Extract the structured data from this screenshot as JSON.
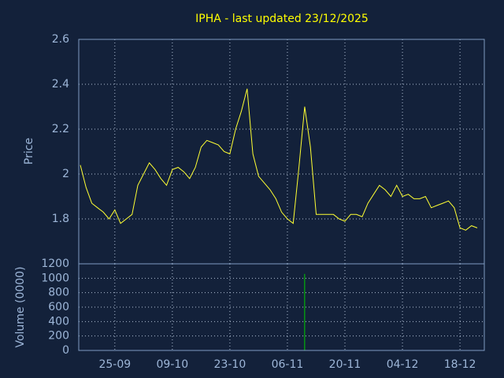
{
  "chart_data": [
    {
      "type": "line",
      "title": "IPHA - last updated 23/12/2025",
      "ylabel": "Price",
      "color": "#ffff33",
      "grid": true,
      "categories": [
        "17-09",
        "18-09",
        "19-09",
        "22-09",
        "23-09",
        "24-09",
        "25-09",
        "26-09",
        "29-09",
        "30-09",
        "01-10",
        "02-10",
        "03-10",
        "06-10",
        "07-10",
        "08-10",
        "09-10",
        "10-10",
        "13-10",
        "14-10",
        "15-10",
        "16-10",
        "17-10",
        "20-10",
        "21-10",
        "22-10",
        "23-10",
        "24-10",
        "27-10",
        "28-10",
        "29-10",
        "30-10",
        "31-10",
        "03-11",
        "04-11",
        "05-11",
        "06-11",
        "07-11",
        "10-11",
        "11-11",
        "12-11",
        "13-11",
        "14-11",
        "17-11",
        "18-11",
        "19-11",
        "20-11",
        "21-11",
        "24-11",
        "25-11",
        "26-11",
        "27-11",
        "28-11",
        "01-12",
        "02-12",
        "03-12",
        "04-12",
        "05-12",
        "08-12",
        "09-12",
        "10-12",
        "11-12",
        "12-12",
        "15-12",
        "16-12",
        "17-12",
        "18-12",
        "19-12",
        "22-12",
        "23-12"
      ],
      "values": [
        2.04,
        1.94,
        1.87,
        1.85,
        1.83,
        1.8,
        1.84,
        1.78,
        1.8,
        1.82,
        1.95,
        2.0,
        2.05,
        2.02,
        1.98,
        1.95,
        2.02,
        2.03,
        2.01,
        1.98,
        2.03,
        2.12,
        2.15,
        2.14,
        2.13,
        2.1,
        2.09,
        2.2,
        2.28,
        2.38,
        2.09,
        1.99,
        1.96,
        1.93,
        1.89,
        1.83,
        1.8,
        1.78,
        2.03,
        2.3,
        2.12,
        1.82,
        1.82,
        1.82,
        1.82,
        1.8,
        1.79,
        1.82,
        1.82,
        1.81,
        1.87,
        1.91,
        1.95,
        1.93,
        1.9,
        1.95,
        1.9,
        1.91,
        1.89,
        1.89,
        1.9,
        1.85,
        1.86,
        1.87,
        1.88,
        1.85,
        1.76,
        1.75,
        1.77,
        1.76
      ],
      "ylim": [
        1.6,
        2.6
      ],
      "yticks": [
        1.8,
        2,
        2.2,
        2.4,
        2.6
      ],
      "xticks": [
        "25-09",
        "09-10",
        "23-10",
        "06-11",
        "20-11",
        "04-12",
        "18-12"
      ]
    },
    {
      "type": "bar",
      "ylabel": "Volume (0000)",
      "color": "#00cc00",
      "grid": true,
      "categories": [
        "17-09",
        "18-09",
        "19-09",
        "22-09",
        "23-09",
        "24-09",
        "25-09",
        "26-09",
        "29-09",
        "30-09",
        "01-10",
        "02-10",
        "03-10",
        "06-10",
        "07-10",
        "08-10",
        "09-10",
        "10-10",
        "13-10",
        "14-10",
        "15-10",
        "16-10",
        "17-10",
        "20-10",
        "21-10",
        "22-10",
        "23-10",
        "24-10",
        "27-10",
        "28-10",
        "29-10",
        "30-10",
        "31-10",
        "03-11",
        "04-11",
        "05-11",
        "06-11",
        "07-11",
        "10-11",
        "11-11",
        "12-11",
        "13-11",
        "14-11",
        "17-11",
        "18-11",
        "19-11",
        "20-11",
        "21-11",
        "24-11",
        "25-11",
        "26-11",
        "27-11",
        "28-11",
        "01-12",
        "02-12",
        "03-12",
        "04-12",
        "05-12",
        "08-12",
        "09-12",
        "10-12",
        "11-12",
        "12-12",
        "15-12",
        "16-12",
        "17-12",
        "18-12",
        "19-12",
        "22-12",
        "23-12"
      ],
      "values": [
        0,
        0,
        0,
        0,
        0,
        0,
        0,
        0,
        0,
        0,
        0,
        0,
        0,
        0,
        0,
        0,
        0,
        0,
        0,
        0,
        0,
        0,
        0,
        0,
        0,
        0,
        0,
        0,
        0,
        0,
        0,
        0,
        0,
        0,
        0,
        0,
        0,
        0,
        0,
        1060,
        0,
        0,
        0,
        0,
        0,
        0,
        0,
        0,
        0,
        0,
        0,
        0,
        0,
        0,
        0,
        0,
        0,
        0,
        0,
        0,
        0,
        0,
        0,
        0,
        0,
        0,
        0,
        0,
        0,
        0
      ],
      "ylim": [
        0,
        1200
      ],
      "yticks": [
        0,
        200,
        400,
        600,
        800,
        1000,
        1200
      ],
      "xticks": [
        "25-09",
        "09-10",
        "23-10",
        "06-11",
        "20-11",
        "04-12",
        "18-12"
      ]
    }
  ]
}
